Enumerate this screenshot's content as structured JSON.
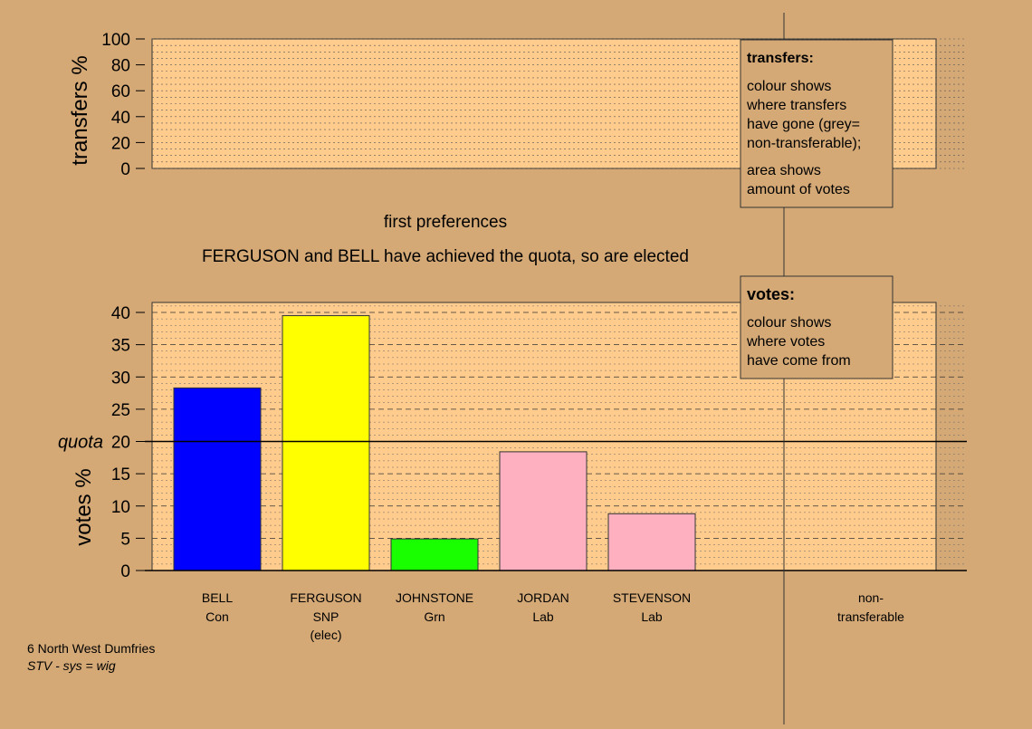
{
  "colors": {
    "background": "#d4a976",
    "plot_fill": "#ffcc8d",
    "con": "#0000ff",
    "snp": "#ffff00",
    "grn": "#19ff00",
    "lab": "#ffb0c0"
  },
  "chart_data": [
    {
      "type": "bar",
      "ylabel": "transfers %",
      "ylim": [
        0,
        100
      ],
      "yticks": [
        0,
        20,
        40,
        60,
        80,
        100
      ],
      "grid": true,
      "values": [],
      "caption": "first preferences",
      "note": "FERGUSON and BELL have achieved the quota, so are elected"
    },
    {
      "type": "bar",
      "ylabel": "votes %",
      "ylim": [
        0,
        40
      ],
      "yticks": [
        0,
        5,
        10,
        15,
        20,
        25,
        30,
        35,
        40
      ],
      "grid": true,
      "quota": {
        "label": "quota",
        "value": 20
      },
      "categories": [
        {
          "name": "BELL",
          "party": "Con",
          "status": "",
          "value": 28.3,
          "color": "#0000ff"
        },
        {
          "name": "FERGUSON",
          "party": "SNP",
          "status": "(elec)",
          "value": 39.5,
          "color": "#ffff00"
        },
        {
          "name": "JOHNSTONE",
          "party": "Grn",
          "status": "",
          "value": 4.9,
          "color": "#19ff00"
        },
        {
          "name": "JORDAN",
          "party": "Lab",
          "status": "",
          "value": 18.4,
          "color": "#ffb0c0"
        },
        {
          "name": "STEVENSON",
          "party": "Lab",
          "status": "",
          "value": 8.8,
          "color": "#ffb0c0"
        }
      ],
      "extra_category": {
        "line1": "non-",
        "line2": "transferable"
      }
    }
  ],
  "legend_transfers": {
    "title": "transfers:",
    "lines": [
      "colour shows",
      "where transfers",
      "have gone (grey=",
      "non-transferable);"
    ],
    "lines2": [
      "area shows",
      "amount of votes"
    ]
  },
  "legend_votes": {
    "title": "votes:",
    "lines": [
      "colour shows",
      "where votes",
      "have come from"
    ]
  },
  "footer": {
    "ward": "6 North West Dumfries",
    "system": "STV - sys = wig"
  }
}
